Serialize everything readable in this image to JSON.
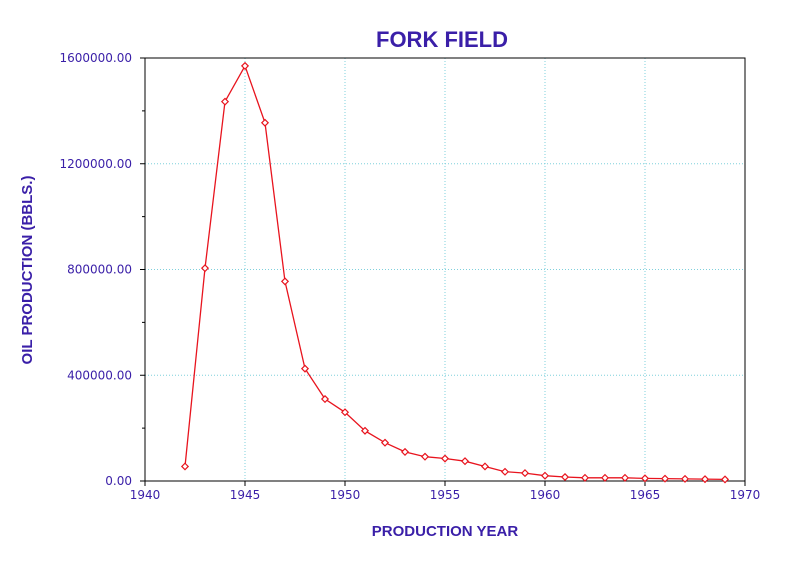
{
  "chart_data": {
    "type": "line",
    "title": "FORK FIELD",
    "xlabel": "PRODUCTION YEAR",
    "ylabel": "OIL PRODUCTION (BBLS.)",
    "xlim": [
      1940,
      1970
    ],
    "ylim": [
      0,
      1600000
    ],
    "x_ticks": [
      1940,
      1945,
      1950,
      1955,
      1960,
      1965,
      1970
    ],
    "x_tick_labels": [
      "1940",
      "1945",
      "1950",
      "1955",
      "1960",
      "1965",
      "1970"
    ],
    "y_ticks": [
      0,
      400000,
      800000,
      1200000,
      1600000
    ],
    "y_tick_labels": [
      "0.00",
      "400000.00",
      "800000.00",
      "1200000.00",
      "1600000.00"
    ],
    "grid": true,
    "colors": {
      "series": "#e8141e",
      "text": "#3a1fa8",
      "grid": "#7fd0dc"
    },
    "series": [
      {
        "x": [
          1942,
          1943,
          1944,
          1945,
          1946,
          1947,
          1948,
          1949,
          1950,
          1951,
          1952,
          1953,
          1954,
          1955,
          1956,
          1957,
          1958,
          1959,
          1960,
          1961,
          1962,
          1963,
          1964,
          1965,
          1966,
          1967,
          1968,
          1969
        ],
        "values": [
          55000,
          805000,
          1435000,
          1570000,
          1355000,
          755000,
          425000,
          310000,
          260000,
          190000,
          145000,
          110000,
          92000,
          85000,
          75000,
          55000,
          35000,
          30000,
          20000,
          15000,
          12000,
          12000,
          12000,
          10000,
          9000,
          8000,
          7000,
          6000
        ]
      }
    ]
  }
}
